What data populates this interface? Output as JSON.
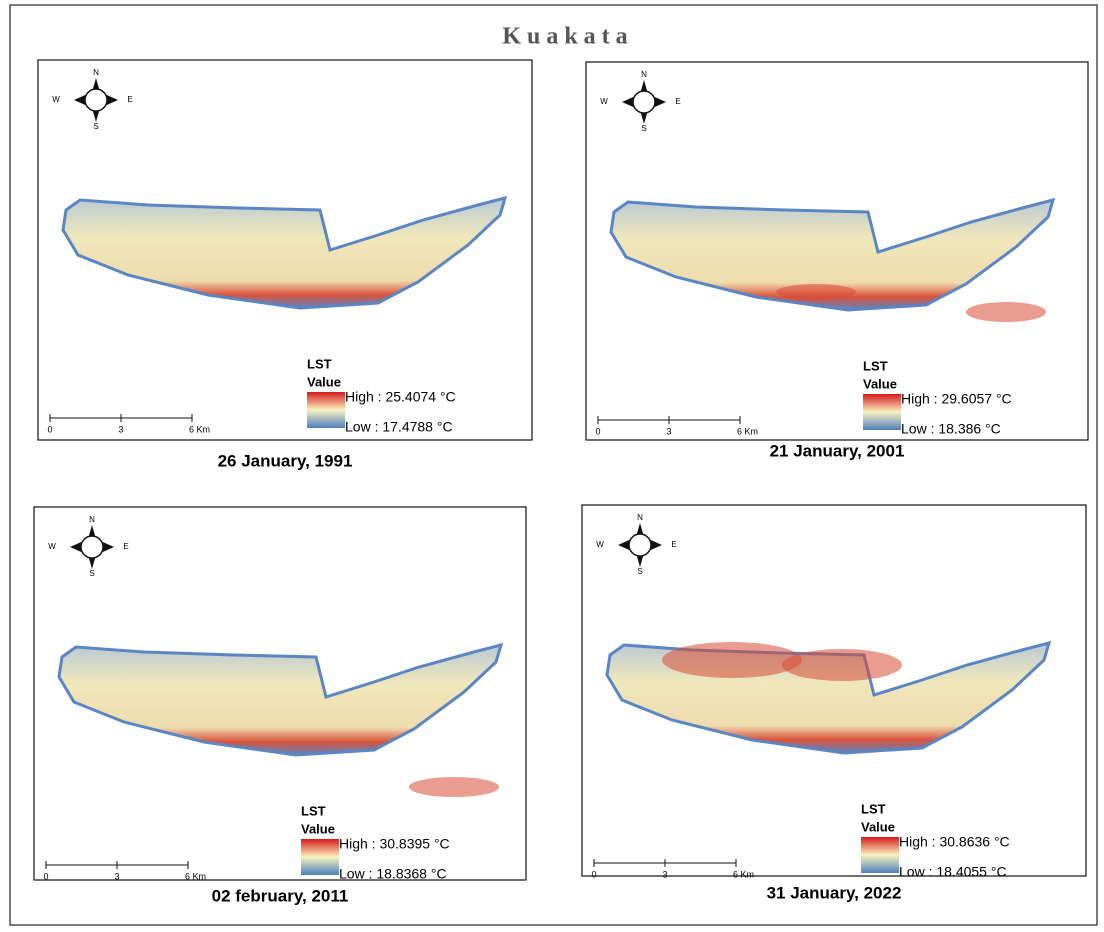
{
  "title": "K u a k a t a",
  "panels": [
    {
      "caption": "26 January, 1991",
      "compass": [
        "N",
        "S",
        "W",
        "E"
      ],
      "scale_labels": [
        "0",
        "3",
        "6 Km"
      ],
      "legend": {
        "title": "LST",
        "field": "Value",
        "high": "High : 25.4074 °C",
        "low": "Low : 17.4788 °C"
      }
    },
    {
      "caption": "21 January, 2001",
      "compass": [
        "N",
        "S",
        "W",
        "E"
      ],
      "scale_labels": [
        "0",
        "3",
        "6 Km"
      ],
      "legend": {
        "title": "LST",
        "field": "Value",
        "high": "High : 29.6057 °C",
        "low": "Low : 18.386 °C"
      }
    },
    {
      "caption": "02 february, 2011",
      "compass": [
        "N",
        "S",
        "W",
        "E"
      ],
      "scale_labels": [
        "0",
        "3",
        "6 Km"
      ],
      "legend": {
        "title": "LST",
        "field": "Value",
        "high": "High : 30.8395 °C",
        "low": "Low : 18.8368 °C"
      }
    },
    {
      "caption": "31 January, 2022",
      "compass": [
        "N",
        "S",
        "W",
        "E"
      ],
      "scale_labels": [
        "0",
        "3",
        "6 Km"
      ],
      "legend": {
        "title": "LST",
        "field": "Value",
        "high": "High : 30.8636 °C",
        "low": "Low : 18.4055 °C"
      }
    }
  ]
}
